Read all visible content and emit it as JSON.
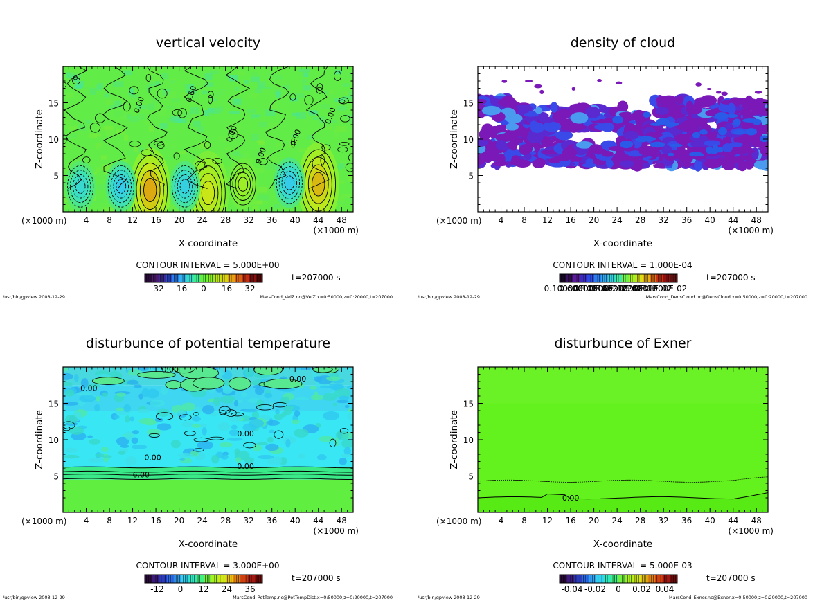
{
  "footer_left": "/usr/bin/gpview  2008-12-29",
  "chart_data": [
    {
      "type": "heatmap",
      "title": "vertical velocity",
      "xlabel": "X-coordinate",
      "ylabel": "Z-coordinate",
      "x_unit": "(×1000 m)",
      "x_unit_right": "(×1000 m)",
      "xlim": [
        0,
        50
      ],
      "ylim": [
        0,
        20
      ],
      "xticks": [
        "4",
        "8",
        "12",
        "16",
        "20",
        "24",
        "28",
        "32",
        "36",
        "40",
        "44",
        "48"
      ],
      "yticks": [
        "5",
        "10",
        "15"
      ],
      "contour_interval": "CONTOUR INTERVAL = 5.000E+00",
      "time": "t=207000 s",
      "colorbar_labels": [
        "-32",
        "-16",
        "0",
        "16",
        "32"
      ],
      "colorbar_colors": [
        "#2a0a3a",
        "#4b1a6a",
        "#3a2a9a",
        "#2a4ad0",
        "#2a7af0",
        "#30b0f0",
        "#30d8d0",
        "#40e890",
        "#60f040",
        "#88f020",
        "#b8e818",
        "#d8d010",
        "#e0a010",
        "#d86010",
        "#c03010",
        "#8a1010",
        "#5a0808"
      ],
      "source": "MarsCond_VelZ.nc@VelZ,x=0:50000,z=0:20000,t=207000",
      "background": "#62ec48",
      "blobs": [
        {
          "x": 15,
          "z": 3,
          "v": 22
        },
        {
          "x": 25,
          "z": 2.6,
          "v": 14
        },
        {
          "x": 44,
          "z": 3.8,
          "v": 20
        },
        {
          "x": 10,
          "z": 3.5,
          "v": -9
        },
        {
          "x": 21,
          "z": 3.5,
          "v": -8
        },
        {
          "x": 39,
          "z": 4,
          "v": -9
        },
        {
          "x": 31,
          "z": 3.8,
          "v": 7
        },
        {
          "x": 3,
          "z": 3.5,
          "v": -6
        }
      ],
      "contour_labels": [
        "0.00",
        "0.00",
        "0.00",
        "0.00",
        "0.00",
        "0.00"
      ]
    },
    {
      "type": "heatmap",
      "title": "density of cloud",
      "xlabel": "X-coordinate",
      "ylabel": "Z-coordinate",
      "x_unit": "(×1000 m)",
      "x_unit_right": "(×1000 m)",
      "xlim": [
        0,
        50
      ],
      "ylim": [
        0,
        20
      ],
      "xticks": [
        "4",
        "8",
        "12",
        "16",
        "20",
        "24",
        "28",
        "32",
        "36",
        "40",
        "44",
        "48"
      ],
      "yticks": [
        "5",
        "10",
        "15"
      ],
      "contour_interval": "CONTOUR INTERVAL = 1.000E-04",
      "time": "t=207000 s",
      "colorbar_labels": [
        "0.10000E-03",
        "0.60000E-03",
        "0.11000E-02",
        "0.16000E-02",
        "0.21000E-02",
        "0.26000E-02",
        "0.31000E-02"
      ],
      "colorbar_colors": [
        "#1a0a2a",
        "#3a1060",
        "#5a1a9a",
        "#3a2ac0",
        "#2a4ae0",
        "#2a7af0",
        "#30a8f0",
        "#30d0e0",
        "#40e8a0",
        "#70f050",
        "#a8f020",
        "#d8e018",
        "#e8b010",
        "#e07010",
        "#c83010",
        "#901010",
        "#601010"
      ],
      "source": "MarsCond_DensCloud.nc@DensCloud,x=0:50000,z=0:20000,t=207000",
      "bands": [
        {
          "x0": 0,
          "x1": 50,
          "z0": 6.3,
          "z1": 8.2
        },
        {
          "x0": 0,
          "x1": 15,
          "z0": 8.2,
          "z1": 11.5
        },
        {
          "x0": 4,
          "x1": 26,
          "z0": 11.5,
          "z1": 14.5
        },
        {
          "x0": 25,
          "x1": 50,
          "z0": 9.5,
          "z1": 13.5
        },
        {
          "x0": 30,
          "x1": 50,
          "z0": 13.5,
          "z1": 15.5
        },
        {
          "x0": 0,
          "x1": 6,
          "z0": 13,
          "z1": 15.8
        },
        {
          "x0": 15,
          "x1": 50,
          "z0": 7.8,
          "z1": 9.5
        }
      ]
    },
    {
      "type": "heatmap",
      "title": "disturbunce of potential temperature",
      "xlabel": "X-coordinate",
      "ylabel": "Z-coordinate",
      "x_unit": "(×1000 m)",
      "x_unit_right": "(×1000 m)",
      "xlim": [
        0,
        50
      ],
      "ylim": [
        0,
        20
      ],
      "xticks": [
        "4",
        "8",
        "12",
        "16",
        "20",
        "24",
        "28",
        "32",
        "36",
        "40",
        "44",
        "48"
      ],
      "yticks": [
        "5",
        "10",
        "15"
      ],
      "contour_interval": "CONTOUR INTERVAL = 3.000E+00",
      "time": "t=207000 s",
      "colorbar_labels": [
        "-12",
        "0",
        "12",
        "24",
        "36"
      ],
      "colorbar_colors": [
        "#2a0a3a",
        "#3a1a7a",
        "#2a3ab8",
        "#2a6ae8",
        "#30a0f0",
        "#30d0f0",
        "#30e8c0",
        "#40f080",
        "#70f040",
        "#a8f020",
        "#d0e818",
        "#e8c010",
        "#e08010",
        "#d04010",
        "#a01810",
        "#700a0a"
      ],
      "source": "MarsCond_PotTemp.nc@PotTempDist,x=0:50000,z=0:20000,t=207000",
      "layers": [
        {
          "z0": 0,
          "z1": 4.5,
          "color": "#60ee40"
        },
        {
          "z0": 4.5,
          "z1": 6.2,
          "color": "#3aea88"
        },
        {
          "z0": 6.2,
          "z1": 14,
          "color": "#38e6f4"
        },
        {
          "z0": 14,
          "z1": 17.5,
          "color": "#3ed6f0"
        },
        {
          "z0": 17.5,
          "z1": 20,
          "color": "#48d8e0"
        }
      ],
      "contour_labels": [
        "0.00",
        "0.00",
        "0.00",
        "0.00",
        "0.00",
        "6.00",
        "0.00"
      ]
    },
    {
      "type": "heatmap",
      "title": "disturbunce of Exner",
      "xlabel": "X-coordinate",
      "ylabel": "Z-coordinate",
      "x_unit": "(×1000 m)",
      "x_unit_right": "(×1000 m)",
      "xlim": [
        0,
        50
      ],
      "ylim": [
        0,
        20
      ],
      "xticks": [
        "4",
        "8",
        "12",
        "16",
        "20",
        "24",
        "28",
        "32",
        "36",
        "40",
        "44",
        "48"
      ],
      "yticks": [
        "5",
        "10",
        "15"
      ],
      "contour_interval": "CONTOUR INTERVAL = 5.000E-03",
      "time": "t=207000 s",
      "colorbar_labels": [
        "-0.04",
        "-0.02",
        "0",
        "0.02",
        "0.04"
      ],
      "colorbar_colors": [
        "#2a0a3a",
        "#3a1a7a",
        "#2a3ab8",
        "#2a6ae8",
        "#30a0f0",
        "#30d0f0",
        "#30e8c0",
        "#40f080",
        "#70f040",
        "#a8f020",
        "#d0e818",
        "#e8c010",
        "#e08010",
        "#d04010",
        "#a01810",
        "#700a0a"
      ],
      "source": "MarsCond_Exner.nc@Exner,x=0:50000,z=0:20000,t=207000",
      "background": "#64f21e",
      "contour_labels": [
        "0.00"
      ]
    }
  ]
}
